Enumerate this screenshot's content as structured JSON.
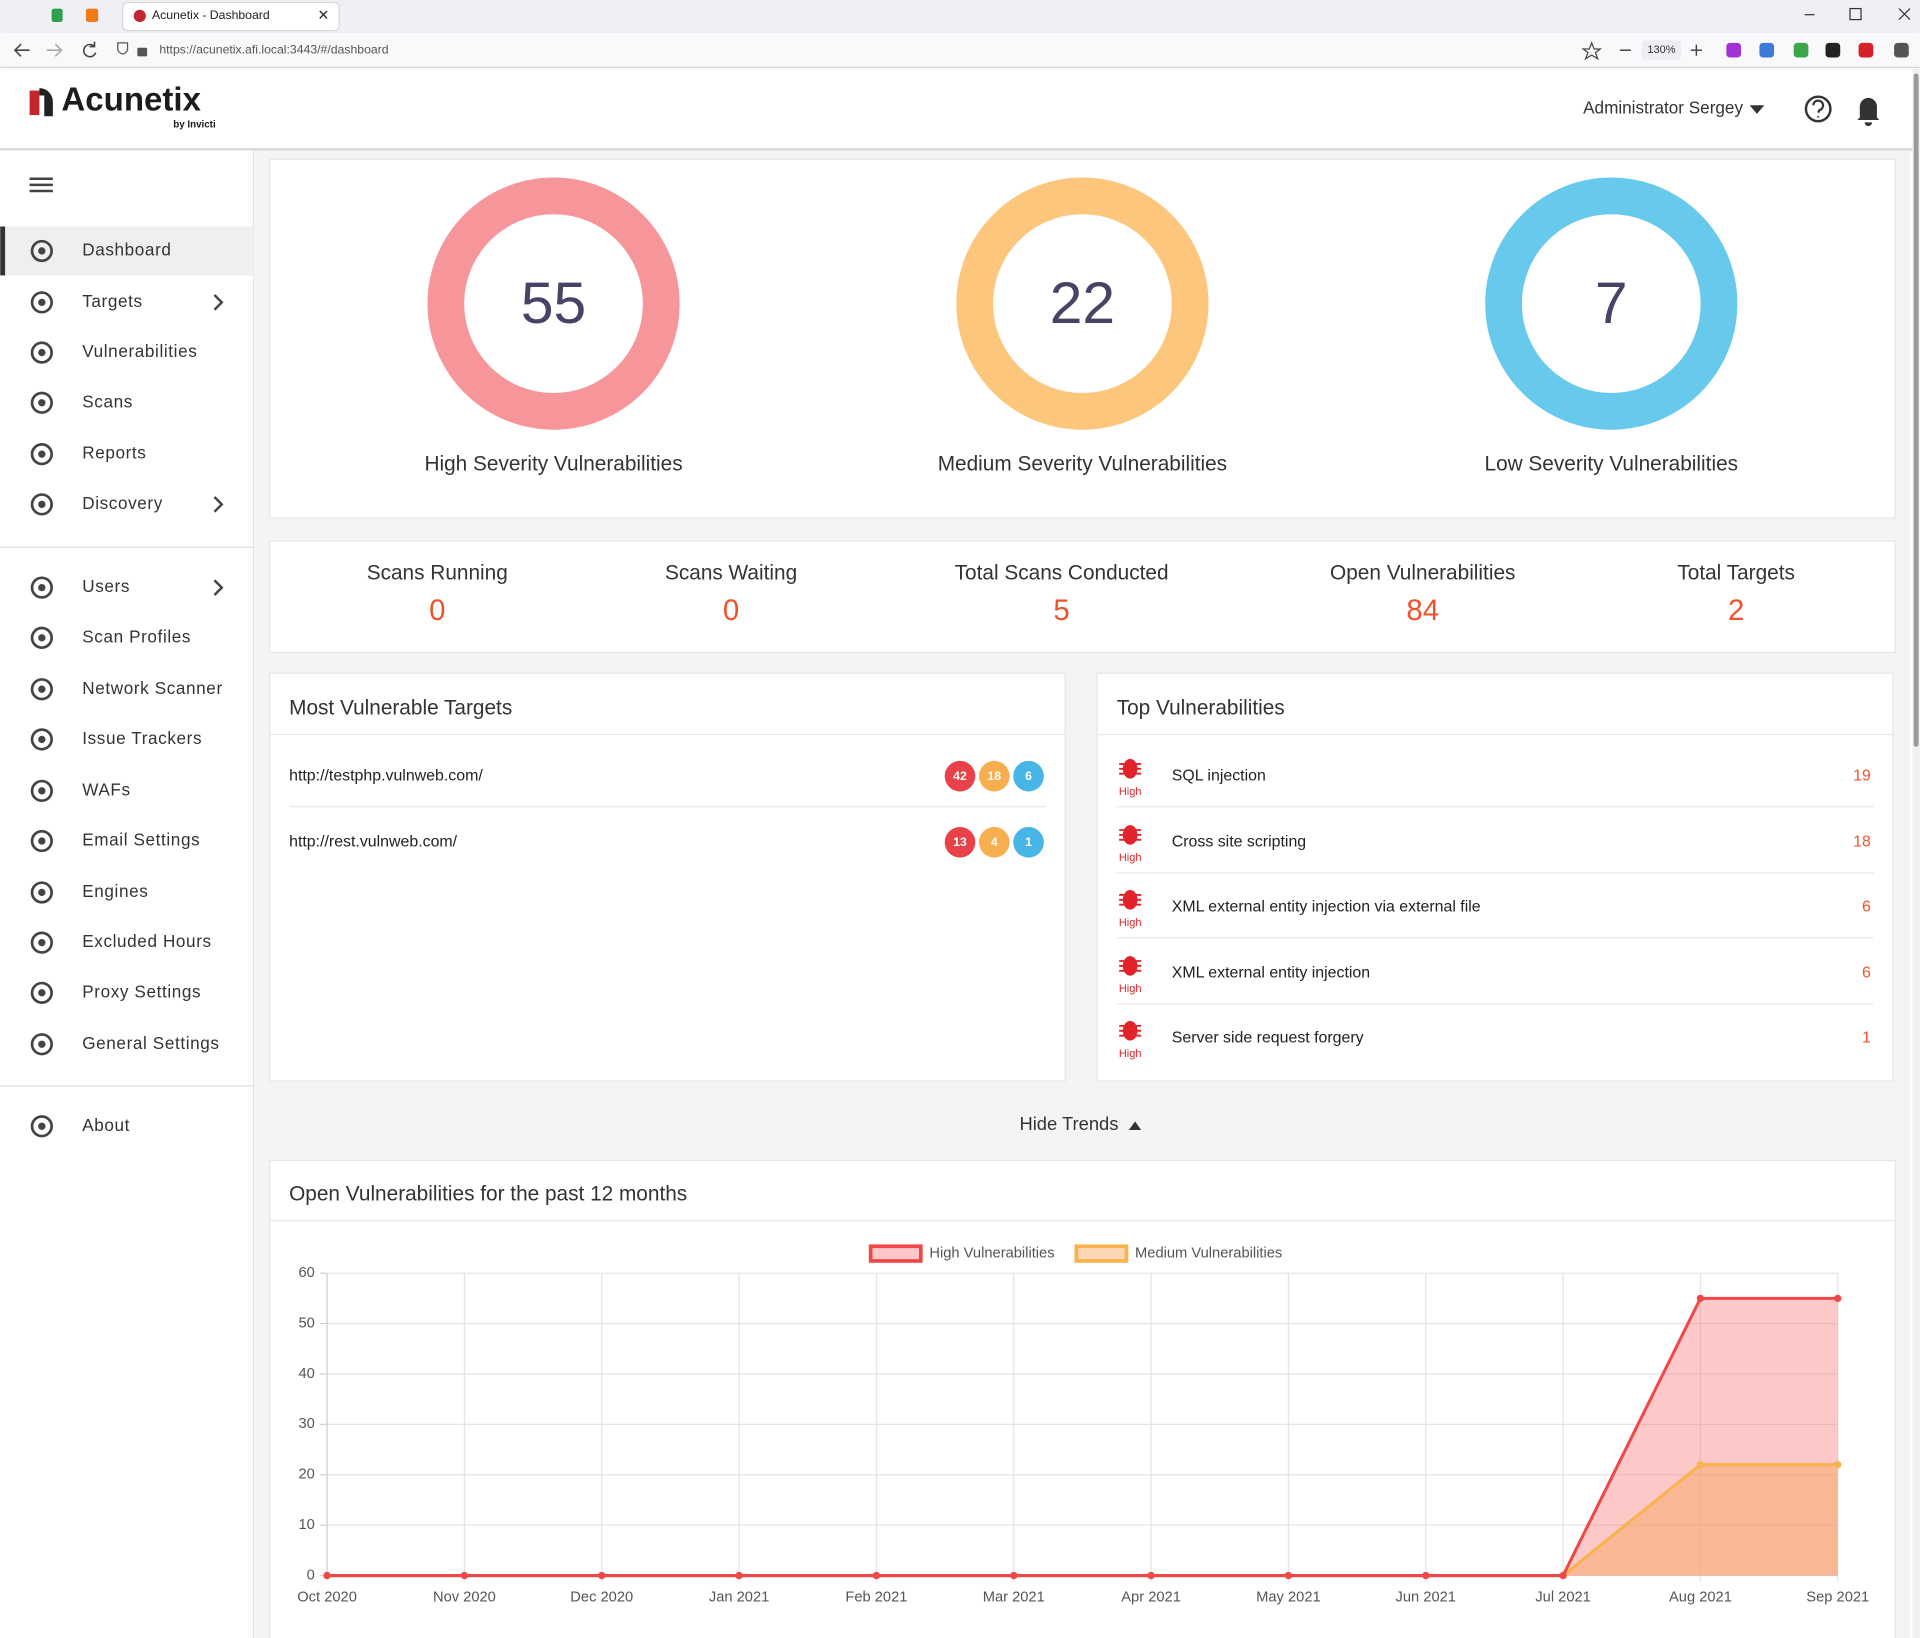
{
  "browser": {
    "tab_title": "Acunetix - Dashboard",
    "url": "https://acunetix.afi.local:3443/#/dashboard",
    "zoom": "130%"
  },
  "header": {
    "logo": "Acunetix",
    "logo_sub": "by Invicti",
    "user": "Administrator Sergey"
  },
  "nav": {
    "main": [
      "Dashboard",
      "Targets",
      "Vulnerabilities",
      "Scans",
      "Reports",
      "Discovery"
    ],
    "settings": [
      "Users",
      "Scan Profiles",
      "Network Scanner",
      "Issue Trackers",
      "WAFs",
      "Email Settings",
      "Engines",
      "Excluded Hours",
      "Proxy Settings",
      "General Settings"
    ],
    "footer": [
      "About"
    ]
  },
  "severity": [
    {
      "count": 55,
      "label": "High Severity Vulnerabilities",
      "color": "#f7969a"
    },
    {
      "count": 22,
      "label": "Medium Severity Vulnerabilities",
      "color": "#fcc77d"
    },
    {
      "count": 7,
      "label": "Low Severity Vulnerabilities",
      "color": "#67c9ec"
    }
  ],
  "stats": [
    {
      "label": "Scans Running",
      "value": 0
    },
    {
      "label": "Scans Waiting",
      "value": 0
    },
    {
      "label": "Total Scans Conducted",
      "value": 5
    },
    {
      "label": "Open Vulnerabilities",
      "value": 84
    },
    {
      "label": "Total Targets",
      "value": 2
    }
  ],
  "most_vulnerable": {
    "title": "Most Vulnerable Targets",
    "rows": [
      {
        "url": "http://testphp.vulnweb.com/",
        "high": 42,
        "medium": 18,
        "low": 6
      },
      {
        "url": "http://rest.vulnweb.com/",
        "high": 13,
        "medium": 4,
        "low": 1
      }
    ]
  },
  "top_vulnerabilities": {
    "title": "Top Vulnerabilities",
    "rows": [
      {
        "severity": "High",
        "name": "SQL injection",
        "count": 19
      },
      {
        "severity": "High",
        "name": "Cross site scripting",
        "count": 18
      },
      {
        "severity": "High",
        "name": "XML external entity injection via external file",
        "count": 6
      },
      {
        "severity": "High",
        "name": "XML external entity injection",
        "count": 6
      },
      {
        "severity": "High",
        "name": "Server side request forgery",
        "count": 1
      }
    ]
  },
  "trends_toggle": "Hide Trends",
  "chart_data": {
    "type": "line",
    "title": "Open Vulnerabilities for the past 12 months",
    "categories": [
      "Oct 2020",
      "Nov 2020",
      "Dec 2020",
      "Jan 2021",
      "Feb 2021",
      "Mar 2021",
      "Apr 2021",
      "May 2021",
      "Jun 2021",
      "Jul 2021",
      "Aug 2021",
      "Sep 2021"
    ],
    "series": [
      {
        "name": "High Vulnerabilities",
        "color": "#f04848",
        "fill": "rgba(247,110,110,0.38)",
        "values": [
          0,
          0,
          0,
          0,
          0,
          0,
          0,
          0,
          0,
          0,
          55,
          55
        ]
      },
      {
        "name": "Medium Vulnerabilities",
        "color": "#f9b24c",
        "fill": "rgba(250,165,90,0.45)",
        "values": [
          0,
          0,
          0,
          0,
          0,
          0,
          0,
          0,
          0,
          0,
          22,
          22
        ]
      }
    ],
    "ylim": [
      0,
      60
    ],
    "yticks": [
      0,
      10,
      20,
      30,
      40,
      50,
      60
    ],
    "grid": true,
    "legend": "top"
  }
}
